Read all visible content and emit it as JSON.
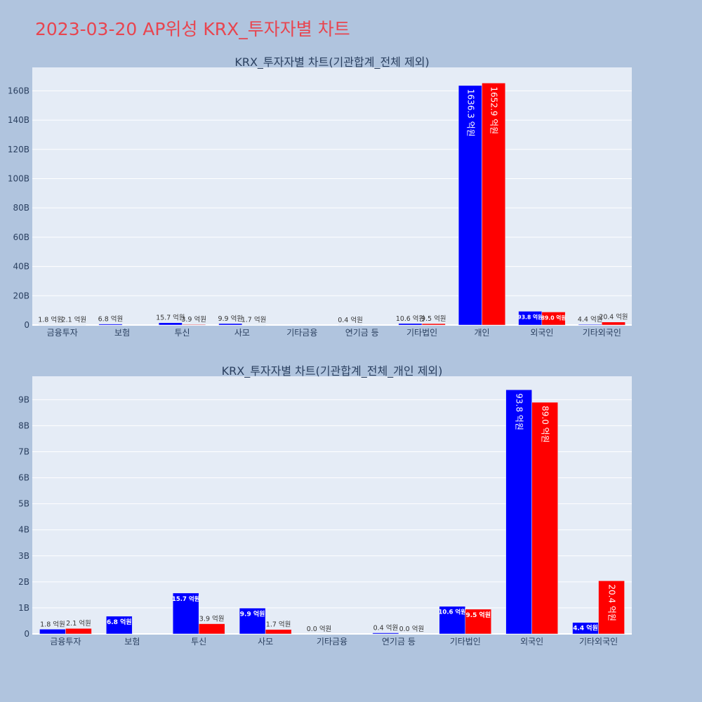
{
  "page": {
    "title": "2023-03-20 AP위성 KRX_투자자별 차트"
  },
  "colors": {
    "background": "#b0c4de",
    "plot_bg": "#e5ecf6",
    "buy": "#0000ff",
    "sell": "#ff0000",
    "title_text": "#e8454f",
    "axis_text": "#2a3f5f"
  },
  "chart_data": [
    {
      "type": "bar",
      "title": "KRX_투자자별 차트(기관합계_전체 제외)",
      "categories": [
        "금융투자",
        "보험",
        "투신",
        "사모",
        "기타금융",
        "연기금 등",
        "기타법인",
        "개인",
        "외국인",
        "기타외국인"
      ],
      "ylim": [
        0,
        176000000000
      ],
      "yticks": [
        0,
        20000000000,
        40000000000,
        60000000000,
        80000000000,
        100000000000,
        120000000000,
        140000000000,
        160000000000
      ],
      "ytick_labels": [
        "0",
        "20B",
        "40B",
        "60B",
        "80B",
        "100B",
        "120B",
        "140B",
        "160B"
      ],
      "grid": true,
      "series": [
        {
          "color": "#0000ff",
          "values": [
            180000000,
            680000000,
            1570000000,
            990000000,
            0,
            40000000,
            1060000000,
            163630000000,
            9380000000,
            440000000
          ],
          "labels": [
            "1.8 억원",
            "6.8 억원",
            "15.7 억원",
            "9.9 억원",
            "",
            "0.4 억원",
            "10.6 억원",
            "1636.3 억원",
            "93.8 억원",
            "4.4 억원"
          ]
        },
        {
          "color": "#ff0000",
          "values": [
            210000000,
            0,
            390000000,
            170000000,
            0,
            0,
            950000000,
            165290000000,
            8900000000,
            2040000000
          ],
          "labels": [
            "2.1 억원",
            "",
            "3.9 억원",
            "1.7 억원",
            "",
            "",
            "9.5 억원",
            "1652.9 억원",
            "89.0 억원",
            "20.4 억원"
          ]
        }
      ]
    },
    {
      "type": "bar",
      "title": "KRX_투자자별 차트(기관합계_전체_개인 제외)",
      "categories": [
        "금융투자",
        "보험",
        "투신",
        "사모",
        "기타금융",
        "연기금 등",
        "기타법인",
        "외국인",
        "기타외국인"
      ],
      "ylim": [
        0,
        9900000000
      ],
      "yticks": [
        0,
        1000000000,
        2000000000,
        3000000000,
        4000000000,
        5000000000,
        6000000000,
        7000000000,
        8000000000,
        9000000000
      ],
      "ytick_labels": [
        "0",
        "1B",
        "2B",
        "3B",
        "4B",
        "5B",
        "6B",
        "7B",
        "8B",
        "9B"
      ],
      "grid": true,
      "series": [
        {
          "color": "#0000ff",
          "values": [
            180000000,
            680000000,
            1570000000,
            990000000,
            0,
            40000000,
            1060000000,
            9380000000,
            440000000
          ],
          "labels": [
            "1.8 억원",
            "6.8 억원",
            "15.7 억원",
            "9.9 억원",
            "0.0 억원",
            "0.4 억원",
            "10.6 억원",
            "93.8 억원",
            "4.4 억원"
          ]
        },
        {
          "color": "#ff0000",
          "values": [
            210000000,
            0,
            390000000,
            170000000,
            0,
            0,
            950000000,
            8900000000,
            2040000000
          ],
          "labels": [
            "2.1 억원",
            "",
            "3.9 억원",
            "1.7 억원",
            "",
            "0.0 억원",
            "9.5 억원",
            "89.0 억원",
            "20.4 억원"
          ]
        }
      ]
    }
  ]
}
